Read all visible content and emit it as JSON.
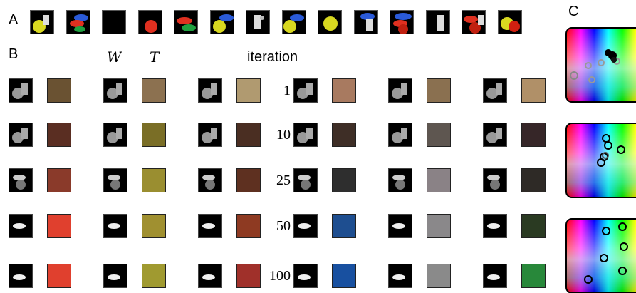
{
  "panel_labels": {
    "a": "A",
    "b": "B",
    "c": "C"
  },
  "headers": {
    "w": "W",
    "t": "T",
    "iteration": "iteration"
  },
  "iterations": [
    "1",
    "10",
    "25",
    "50",
    "100"
  ],
  "scene_row": {
    "description_items": [
      "yellow-ball+pitcher",
      "red+blue discs",
      "black",
      "red tomato",
      "red+green discs",
      "blue disc+yellow ball",
      "pitcher",
      "blue disc+yellow ball",
      "yellow ball",
      "blue disc+pitcher",
      "blue+red discs",
      "pitcher",
      "red discs+pitcher",
      "yellow ball+tomato"
    ]
  },
  "swatch_colors": [
    [
      "#6a5232",
      "#8c7150",
      "#b09a70",
      "#a87a60",
      "#8a7050",
      "#b09068"
    ],
    [
      "#5a2e22",
      "#7a6e26",
      "#4a2e22",
      "#3e2e26",
      "#5e5650",
      "#362628"
    ],
    [
      "#8a3a2a",
      "#9a8e30",
      "#5e3020",
      "#2e2e2e",
      "#8a8286",
      "#2e2a26"
    ],
    [
      "#e0402e",
      "#a09030",
      "#8e3a22",
      "#1e4e90",
      "#8a888a",
      "#2a3a22"
    ],
    [
      "#e0402e",
      "#a09a30",
      "#a0302a",
      "#1850a0",
      "#8a8a8a",
      "#28883a"
    ]
  ],
  "colors": {
    "background": "#ffffff",
    "thumb_bg": "#000000"
  }
}
